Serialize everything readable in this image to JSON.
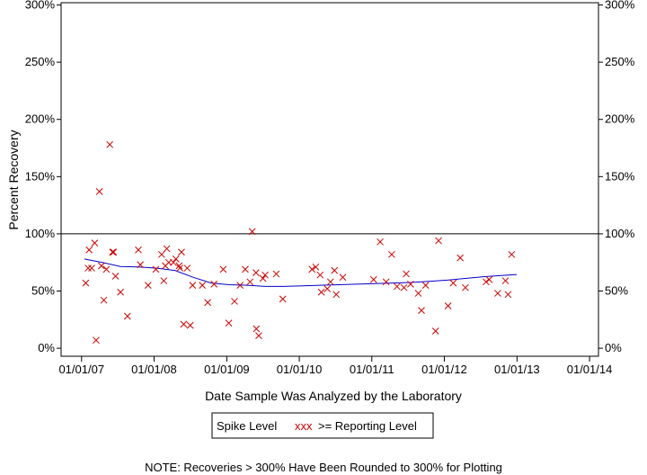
{
  "chart_data": {
    "type": "scatter",
    "title": "",
    "xlabel": "Date Sample Was Analyzed by the Laboratory",
    "ylabel": "Percent Recovery",
    "x_ticks": [
      "01/01/07",
      "01/01/08",
      "01/01/09",
      "01/01/10",
      "01/01/11",
      "01/01/12",
      "01/01/13",
      "01/01/14"
    ],
    "y_ticks": [
      "0%",
      "50%",
      "100%",
      "150%",
      "200%",
      "250%",
      "300%"
    ],
    "xlim": [
      "2006-09-20",
      "2014-02-15"
    ],
    "ylim": [
      -7,
      302
    ],
    "reference_line": 100,
    "grid": false,
    "legend": {
      "position": "bottom-center",
      "entries": [
        "Spike Level",
        "xxx",
        ">= Reporting Level"
      ]
    },
    "note": "NOTE: Recoveries > 300% Have Been Rounded to 300% for Plotting",
    "colors": {
      "points": "#cc0000",
      "trend": "#0000cc",
      "axes": "#000000"
    },
    "series": [
      {
        "kind": "points",
        "x": [
          "2007-01-22",
          "2007-02-03",
          "2007-02-08",
          "2007-02-21",
          "2007-03-08",
          "2007-03-15",
          "2007-04-01",
          "2007-04-11",
          "2007-04-23",
          "2007-05-06",
          "2007-05-23",
          "2007-06-06",
          "2007-06-11",
          "2007-06-21",
          "2007-07-16",
          "2007-08-20",
          "2007-10-14",
          "2007-10-24",
          "2007-12-02",
          "2008-01-10",
          "2008-02-08",
          "2008-02-19",
          "2008-02-27",
          "2008-03-05",
          "2008-03-15",
          "2008-04-07",
          "2008-04-20",
          "2008-05-06",
          "2008-05-10",
          "2008-05-18",
          "2008-05-29",
          "2008-06-16",
          "2008-07-01",
          "2008-07-13",
          "2008-08-31",
          "2008-09-27",
          "2008-10-29",
          "2008-12-14",
          "2009-01-11",
          "2009-02-09",
          "2009-03-09",
          "2009-04-04",
          "2009-04-28",
          "2009-05-09",
          "2009-05-28",
          "2009-05-30",
          "2009-06-11",
          "2009-07-02",
          "2009-07-13",
          "2009-09-07",
          "2009-10-10",
          "2010-03-06",
          "2010-03-25",
          "2010-04-16",
          "2010-04-22",
          "2010-05-22",
          "2010-06-07",
          "2010-06-27",
          "2010-07-06",
          "2010-08-08",
          "2011-01-10",
          "2011-02-12",
          "2011-03-14",
          "2011-04-11",
          "2011-05-08",
          "2011-06-12",
          "2011-06-23",
          "2011-07-15",
          "2011-08-23",
          "2011-09-08",
          "2011-09-29",
          "2011-11-18",
          "2011-12-03",
          "2012-01-20",
          "2012-02-15",
          "2012-03-21",
          "2012-04-16",
          "2012-07-29",
          "2012-08-14",
          "2012-09-26",
          "2012-11-04",
          "2012-11-17",
          "2012-12-05"
        ],
        "y": [
          57,
          70,
          86,
          70,
          92,
          7,
          137,
          72,
          42,
          69,
          178,
          84,
          84,
          63,
          49,
          28,
          86,
          73,
          55,
          69,
          82,
          59,
          72,
          87,
          75,
          75,
          78,
          72,
          70,
          84,
          21,
          70,
          20,
          55,
          55,
          40,
          56,
          69,
          22,
          41,
          55,
          69,
          58,
          102,
          66,
          17,
          11,
          61,
          64,
          65,
          43,
          69,
          71,
          64,
          49,
          52,
          58,
          68,
          47,
          62,
          60,
          93,
          58,
          82,
          54,
          53,
          65,
          56,
          48,
          33,
          55,
          15,
          94,
          37,
          57,
          79,
          53,
          58,
          60,
          48,
          59,
          47,
          82
        ]
      },
      {
        "kind": "trend",
        "name": "",
        "x": [
          "2007-01-15",
          "2007-04-15",
          "2007-07-15",
          "2007-10-15",
          "2008-01-15",
          "2008-04-15",
          "2008-07-15",
          "2008-10-15",
          "2009-01-15",
          "2009-04-15",
          "2009-07-15",
          "2009-10-15",
          "2010-01-15",
          "2010-04-15",
          "2010-07-15",
          "2010-10-15",
          "2011-01-15",
          "2011-04-15",
          "2011-07-15",
          "2011-10-15",
          "2012-01-15",
          "2012-04-15",
          "2012-07-15",
          "2012-10-15",
          "2012-12-31"
        ],
        "y": [
          78,
          75,
          71.5,
          71,
          70,
          68,
          62,
          57,
          55.5,
          55,
          54,
          54,
          54.5,
          55,
          55.5,
          56,
          56.5,
          57,
          57.5,
          58.5,
          59.5,
          61,
          62.5,
          63.5,
          64.5
        ]
      }
    ]
  }
}
